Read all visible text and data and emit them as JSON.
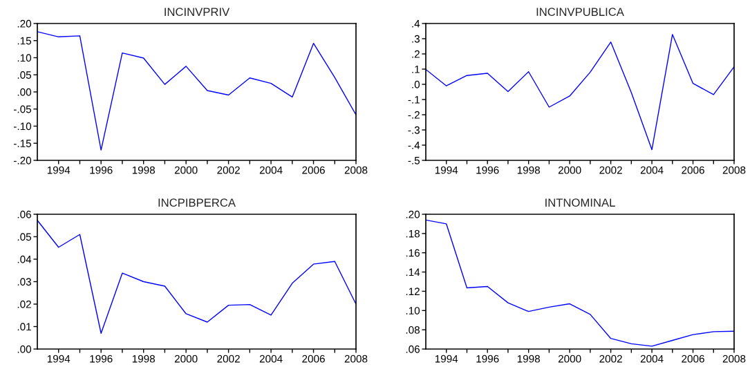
{
  "chart_data": [
    {
      "type": "line",
      "title": "INCINVPRIV",
      "x": [
        1993,
        1994,
        1995,
        1996,
        1997,
        1998,
        1999,
        2000,
        2001,
        2002,
        2003,
        2004,
        2005,
        2006,
        2007,
        2008
      ],
      "series": [
        {
          "color": "#0000ff",
          "values": [
            0.176,
            0.161,
            0.164,
            -0.17,
            0.114,
            0.099,
            0.022,
            0.075,
            0.004,
            -0.009,
            0.041,
            0.025,
            -0.015,
            0.142,
            0.042,
            -0.067
          ]
        }
      ],
      "xlim": [
        1993,
        2008
      ],
      "xticks": [
        {
          "value": 1994,
          "label": "1994"
        },
        {
          "value": 1995,
          "label": null
        },
        {
          "value": 1996,
          "label": "1996"
        },
        {
          "value": 1997,
          "label": null
        },
        {
          "value": 1998,
          "label": "1998"
        },
        {
          "value": 1999,
          "label": null
        },
        {
          "value": 2000,
          "label": "2000"
        },
        {
          "value": 2001,
          "label": null
        },
        {
          "value": 2002,
          "label": "2002"
        },
        {
          "value": 2003,
          "label": null
        },
        {
          "value": 2004,
          "label": "2004"
        },
        {
          "value": 2005,
          "label": null
        },
        {
          "value": 2006,
          "label": "2006"
        },
        {
          "value": 2007,
          "label": null
        },
        {
          "value": 2008,
          "label": "2008"
        }
      ],
      "ylim": [
        -0.2,
        0.2
      ],
      "yticks": [
        {
          "value": -0.2,
          "label": "-.20"
        },
        {
          "value": -0.15,
          "label": "-.15"
        },
        {
          "value": -0.1,
          "label": "-.10"
        },
        {
          "value": -0.05,
          "label": "-.05"
        },
        {
          "value": 0.0,
          "label": ".00"
        },
        {
          "value": 0.05,
          "label": ".05"
        },
        {
          "value": 0.1,
          "label": ".10"
        },
        {
          "value": 0.15,
          "label": ".15"
        },
        {
          "value": 0.2,
          "label": ".20"
        }
      ],
      "grid": false
    },
    {
      "type": "line",
      "title": "INCINVPUBLICA",
      "x": [
        1993,
        1994,
        1995,
        1996,
        1997,
        1998,
        1999,
        2000,
        2001,
        2002,
        2003,
        2004,
        2005,
        2006,
        2007,
        2008
      ],
      "series": [
        {
          "color": "#0000ff",
          "values": [
            0.098,
            -0.01,
            0.058,
            0.073,
            -0.048,
            0.083,
            -0.15,
            -0.077,
            0.08,
            0.278,
            -0.055,
            -0.43,
            0.328,
            0.006,
            -0.068,
            0.115
          ]
        }
      ],
      "xlim": [
        1993,
        2008
      ],
      "xticks": [
        {
          "value": 1994,
          "label": "1994"
        },
        {
          "value": 1995,
          "label": null
        },
        {
          "value": 1996,
          "label": "1996"
        },
        {
          "value": 1997,
          "label": null
        },
        {
          "value": 1998,
          "label": "1998"
        },
        {
          "value": 1999,
          "label": null
        },
        {
          "value": 2000,
          "label": "2000"
        },
        {
          "value": 2001,
          "label": null
        },
        {
          "value": 2002,
          "label": "2002"
        },
        {
          "value": 2003,
          "label": null
        },
        {
          "value": 2004,
          "label": "2004"
        },
        {
          "value": 2005,
          "label": null
        },
        {
          "value": 2006,
          "label": "2006"
        },
        {
          "value": 2007,
          "label": null
        },
        {
          "value": 2008,
          "label": "2008"
        }
      ],
      "ylim": [
        -0.5,
        0.4
      ],
      "yticks": [
        {
          "value": -0.5,
          "label": "-.5"
        },
        {
          "value": -0.4,
          "label": "-.4"
        },
        {
          "value": -0.3,
          "label": "-.3"
        },
        {
          "value": -0.2,
          "label": "-.2"
        },
        {
          "value": -0.1,
          "label": "-.1"
        },
        {
          "value": 0.0,
          "label": ".0"
        },
        {
          "value": 0.1,
          "label": ".1"
        },
        {
          "value": 0.2,
          "label": ".2"
        },
        {
          "value": 0.3,
          "label": ".3"
        },
        {
          "value": 0.4,
          "label": ".4"
        }
      ],
      "grid": false
    },
    {
      "type": "line",
      "title": "INCPIBPERCA",
      "x": [
        1993,
        1994,
        1995,
        1996,
        1997,
        1998,
        1999,
        2000,
        2001,
        2002,
        2003,
        2004,
        2005,
        2006,
        2007,
        2008
      ],
      "series": [
        {
          "color": "#0000ff",
          "values": [
            0.0573,
            0.0453,
            0.051,
            0.007,
            0.0338,
            0.03,
            0.028,
            0.0157,
            0.012,
            0.0195,
            0.0198,
            0.0151,
            0.0293,
            0.0378,
            0.039,
            0.02
          ]
        }
      ],
      "xlim": [
        1993,
        2008
      ],
      "xticks": [
        {
          "value": 1994,
          "label": "1994"
        },
        {
          "value": 1995,
          "label": null
        },
        {
          "value": 1996,
          "label": "1996"
        },
        {
          "value": 1997,
          "label": null
        },
        {
          "value": 1998,
          "label": "1998"
        },
        {
          "value": 1999,
          "label": null
        },
        {
          "value": 2000,
          "label": "2000"
        },
        {
          "value": 2001,
          "label": null
        },
        {
          "value": 2002,
          "label": "2002"
        },
        {
          "value": 2003,
          "label": null
        },
        {
          "value": 2004,
          "label": "2004"
        },
        {
          "value": 2005,
          "label": null
        },
        {
          "value": 2006,
          "label": "2006"
        },
        {
          "value": 2007,
          "label": null
        },
        {
          "value": 2008,
          "label": "2008"
        }
      ],
      "ylim": [
        0.0,
        0.06
      ],
      "yticks": [
        {
          "value": 0.0,
          "label": ".00"
        },
        {
          "value": 0.01,
          "label": ".01"
        },
        {
          "value": 0.02,
          "label": ".02"
        },
        {
          "value": 0.03,
          "label": ".03"
        },
        {
          "value": 0.04,
          "label": ".04"
        },
        {
          "value": 0.05,
          "label": ".05"
        },
        {
          "value": 0.06,
          "label": ".06"
        }
      ],
      "grid": false
    },
    {
      "type": "line",
      "title": "INTNOMINAL",
      "x": [
        1993,
        1994,
        1995,
        1996,
        1997,
        1998,
        1999,
        2000,
        2001,
        2002,
        2003,
        2004,
        2005,
        2006,
        2007,
        2008
      ],
      "series": [
        {
          "color": "#0000ff",
          "values": [
            0.194,
            0.19,
            0.1235,
            0.125,
            0.108,
            0.099,
            0.1035,
            0.107,
            0.096,
            0.071,
            0.0655,
            0.063,
            0.069,
            0.075,
            0.078,
            0.0785
          ]
        }
      ],
      "xlim": [
        1993,
        2008
      ],
      "xticks": [
        {
          "value": 1994,
          "label": "1994"
        },
        {
          "value": 1995,
          "label": null
        },
        {
          "value": 1996,
          "label": "1996"
        },
        {
          "value": 1997,
          "label": null
        },
        {
          "value": 1998,
          "label": "1998"
        },
        {
          "value": 1999,
          "label": null
        },
        {
          "value": 2000,
          "label": "2000"
        },
        {
          "value": 2001,
          "label": null
        },
        {
          "value": 2002,
          "label": "2002"
        },
        {
          "value": 2003,
          "label": null
        },
        {
          "value": 2004,
          "label": "2004"
        },
        {
          "value": 2005,
          "label": null
        },
        {
          "value": 2006,
          "label": "2006"
        },
        {
          "value": 2007,
          "label": null
        },
        {
          "value": 2008,
          "label": "2008"
        }
      ],
      "ylim": [
        0.06,
        0.2
      ],
      "yticks": [
        {
          "value": 0.06,
          "label": ".06"
        },
        {
          "value": 0.08,
          "label": ".08"
        },
        {
          "value": 0.1,
          "label": ".10"
        },
        {
          "value": 0.12,
          "label": ".12"
        },
        {
          "value": 0.14,
          "label": ".14"
        },
        {
          "value": 0.16,
          "label": ".16"
        },
        {
          "value": 0.18,
          "label": ".18"
        },
        {
          "value": 0.2,
          "label": ".20"
        }
      ],
      "grid": false
    }
  ]
}
